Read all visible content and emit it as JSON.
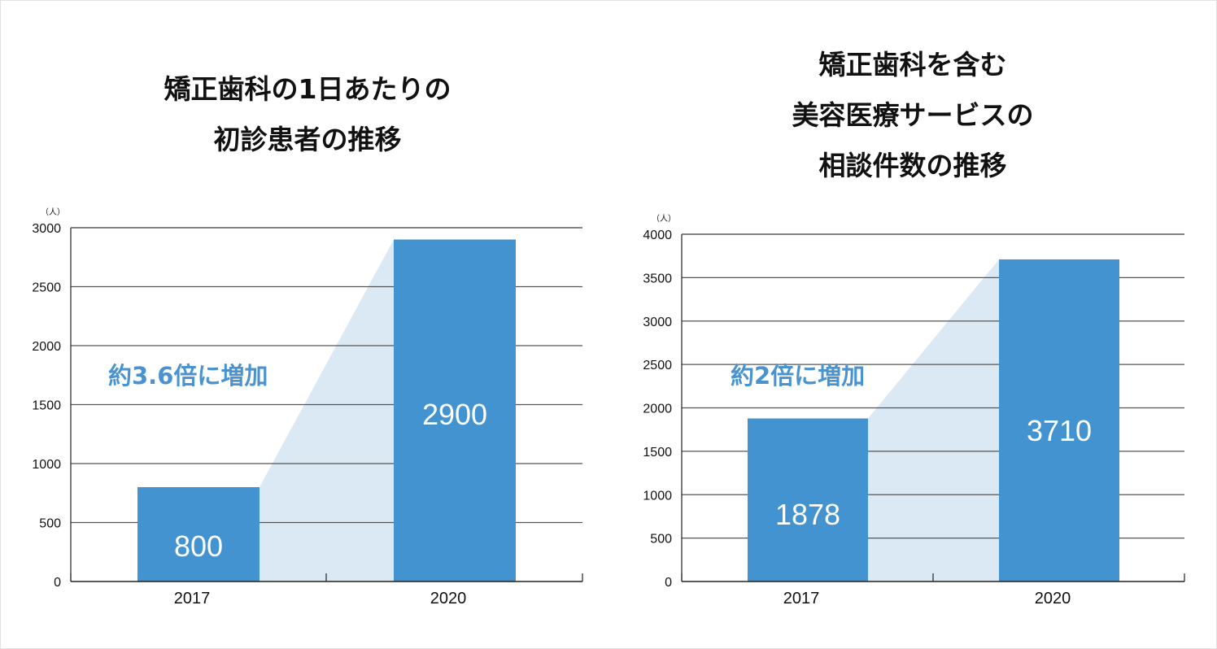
{
  "colors": {
    "bar": "#4293cf",
    "shade": "#dbe9f5",
    "annotation": "#4a93d0",
    "grid": "#333333"
  },
  "chart_data": [
    {
      "type": "bar",
      "title_lines": [
        "矯正歯科の1日あたりの",
        "初診患者の推移"
      ],
      "unit": "（人）",
      "categories": [
        "2017",
        "2020"
      ],
      "values": [
        800,
        2900
      ],
      "data_labels": [
        "800",
        "2900"
      ],
      "ylim": [
        0,
        3000
      ],
      "yticks": [
        "0",
        "500",
        "1000",
        "1500",
        "2000",
        "2500",
        "3000"
      ],
      "annotation": "約3.6倍に増加",
      "grid": true
    },
    {
      "type": "bar",
      "title_lines": [
        "矯正歯科を含む",
        "美容医療サービスの",
        "相談件数の推移"
      ],
      "unit": "（人）",
      "categories": [
        "2017",
        "2020"
      ],
      "values": [
        1878,
        3710
      ],
      "data_labels": [
        "1878",
        "3710"
      ],
      "ylim": [
        0,
        4000
      ],
      "yticks": [
        "0",
        "500",
        "1000",
        "1500",
        "2000",
        "2500",
        "3000",
        "3500",
        "4000"
      ],
      "annotation": "約2倍に増加",
      "grid": true
    }
  ]
}
